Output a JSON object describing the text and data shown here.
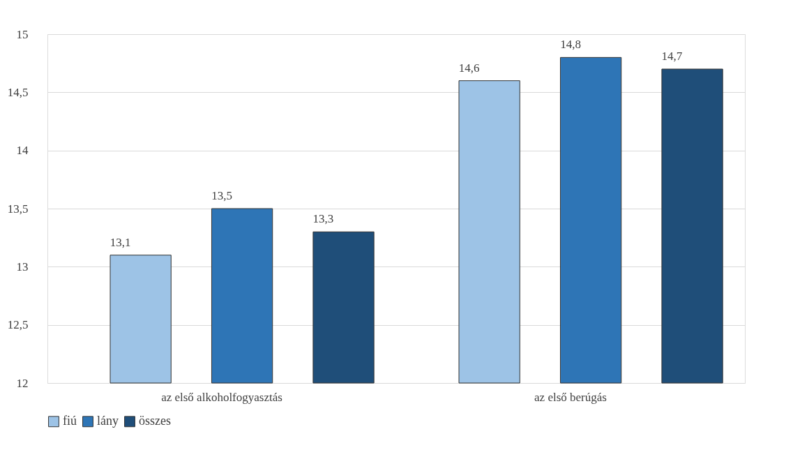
{
  "chart_data": {
    "type": "bar",
    "categories": [
      "az első alkoholfogyasztás",
      "az első berúgás"
    ],
    "series": [
      {
        "name": "fiú",
        "color": "#9dc3e6",
        "values": [
          13.1,
          14.6
        ],
        "value_labels": [
          "13,1",
          "14,6"
        ]
      },
      {
        "name": "lány",
        "color": "#2e75b6",
        "values": [
          13.5,
          14.8
        ],
        "value_labels": [
          "13,5",
          "14,8"
        ]
      },
      {
        "name": "összes",
        "color": "#1f4e79",
        "values": [
          13.3,
          14.7
        ],
        "value_labels": [
          "13,3",
          "14,7"
        ]
      }
    ],
    "ylim": [
      12,
      15
    ],
    "yticks": [
      12,
      {
        "value": 12.5,
        "label": "12,5"
      },
      13,
      {
        "value": 13.5,
        "label": "13,5"
      },
      14,
      {
        "value": 14.5,
        "label": "14,5"
      },
      15
    ],
    "grid": "y",
    "legend": "bottom"
  }
}
